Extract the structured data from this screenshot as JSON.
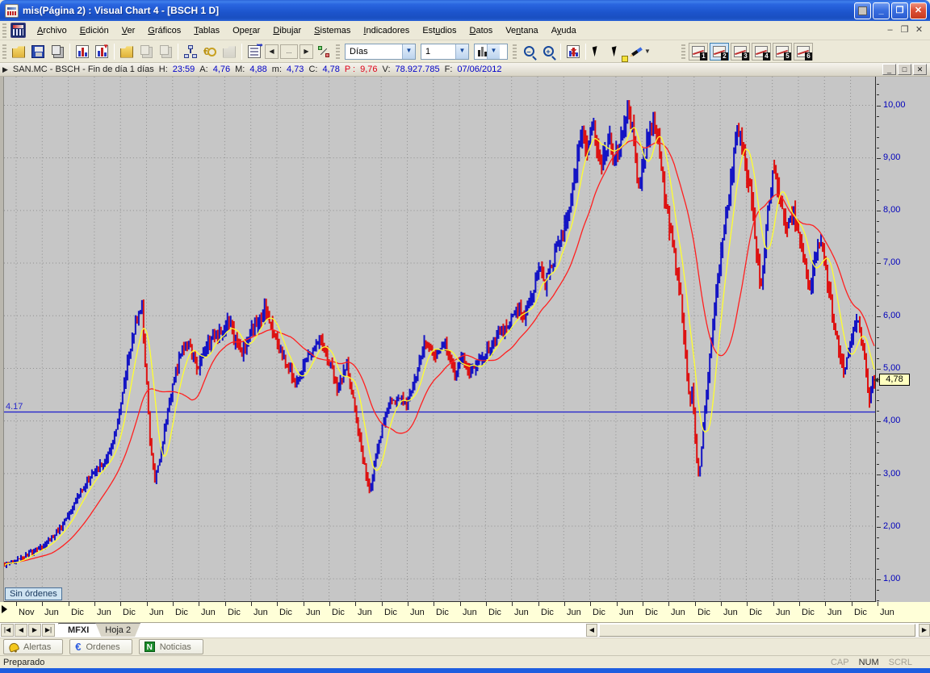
{
  "window": {
    "title": "mis(Página 2) : Visual Chart 4 - [BSCH 1 D]"
  },
  "menu": {
    "items": [
      {
        "label": "Archivo",
        "accel": 0
      },
      {
        "label": "Edición",
        "accel": 0
      },
      {
        "label": "Ver",
        "accel": 0
      },
      {
        "label": "Gráficos",
        "accel": 0
      },
      {
        "label": "Tablas",
        "accel": 0
      },
      {
        "label": "Operar",
        "accel": 3
      },
      {
        "label": "Dibujar",
        "accel": 0
      },
      {
        "label": "Sistemas",
        "accel": 0
      },
      {
        "label": "Indicadores",
        "accel": 0
      },
      {
        "label": "Estudios",
        "accel": 3
      },
      {
        "label": "Datos",
        "accel": 0
      },
      {
        "label": "Ventana",
        "accel": 2
      },
      {
        "label": "Ayuda",
        "accel": 1
      }
    ]
  },
  "toolbar": {
    "interval_combo": "Días",
    "periods_combo": "1",
    "page_buttons": [
      "1",
      "2",
      "3",
      "4",
      "5",
      "6"
    ],
    "active_page": "2"
  },
  "chart_header": {
    "segments": [
      {
        "t": "SAN.MC - BSCH - Fin de día 1 días",
        "c": "k"
      },
      {
        "t": "H:",
        "c": "k"
      },
      {
        "t": "23:59",
        "c": "b"
      },
      {
        "t": "A:",
        "c": "k"
      },
      {
        "t": "4,76",
        "c": "b"
      },
      {
        "t": "M:",
        "c": "k"
      },
      {
        "t": "4,88",
        "c": "b"
      },
      {
        "t": "m:",
        "c": "k"
      },
      {
        "t": "4,73",
        "c": "b"
      },
      {
        "t": "C:",
        "c": "k"
      },
      {
        "t": "4,78",
        "c": "b"
      },
      {
        "t": "P :",
        "c": "r"
      },
      {
        "t": "9,76",
        "c": "r"
      },
      {
        "t": "V:",
        "c": "k"
      },
      {
        "t": "78.927.785",
        "c": "b"
      },
      {
        "t": "F:",
        "c": "k"
      },
      {
        "t": "07/06/2012",
        "c": "b"
      }
    ]
  },
  "chart": {
    "y_axis_labels": [
      {
        "v": 10,
        "t": "10,00"
      },
      {
        "v": 9,
        "t": "9,00"
      },
      {
        "v": 8,
        "t": "8,00"
      },
      {
        "v": 7,
        "t": "7,00"
      },
      {
        "v": 6,
        "t": "6,00"
      },
      {
        "v": 5,
        "t": "5,00"
      },
      {
        "v": 4,
        "t": "4,00"
      },
      {
        "v": 3,
        "t": "3,00"
      },
      {
        "v": 2,
        "t": "2,00"
      },
      {
        "v": 1,
        "t": "1,00"
      }
    ],
    "x_axis_labels": [
      "Nov",
      "Jun",
      "Dic",
      "Jun",
      "Dic",
      "Jun",
      "Dic",
      "Jun",
      "Dic",
      "Jun",
      "Dic",
      "Jun",
      "Dic",
      "Jun",
      "Dic",
      "Jun",
      "Dic",
      "Jun",
      "Dic",
      "Jun",
      "Dic",
      "Jun",
      "Dic",
      "Jun",
      "Dic",
      "Jun",
      "Dic",
      "Jun",
      "Dic",
      "Jun",
      "Dic",
      "Jun",
      "Dic",
      "Jun"
    ],
    "hline": {
      "value": 4.17,
      "label": "4.17"
    },
    "last_price": {
      "value": 4.78,
      "label": "4,78"
    },
    "no_orders_label": "Sin órdenes",
    "colors": {
      "up": "#1414c4",
      "down": "#dd1212",
      "ma_fast": "#ffff2e",
      "ma_slow": "#ff2020",
      "hline": "#2626cc",
      "grid": "#8f8f8f",
      "bg": "#c6c6c6"
    }
  },
  "chart_data": {
    "type": "candlestick",
    "symbol": "SAN.MC",
    "period": "1 D",
    "summary": {
      "H": "23:59",
      "A": "4,76",
      "M": "4,88",
      "m": "4,73",
      "C": "4,78",
      "P": "9,76",
      "V": "78.927.785",
      "F": "07/06/2012"
    },
    "y_range": [
      0.55,
      10.55
    ],
    "anchors": [
      [
        6,
        1.28
      ],
      [
        18,
        1.32
      ],
      [
        32,
        1.42
      ],
      [
        46,
        1.55
      ],
      [
        60,
        1.68
      ],
      [
        72,
        1.88
      ],
      [
        84,
        2.12
      ],
      [
        96,
        2.5
      ],
      [
        108,
        2.8
      ],
      [
        120,
        3.05
      ],
      [
        132,
        3.25
      ],
      [
        142,
        3.6
      ],
      [
        152,
        4.35
      ],
      [
        162,
        5.3
      ],
      [
        170,
        5.85
      ],
      [
        178,
        6.12
      ],
      [
        183,
        4.9
      ],
      [
        188,
        3.6
      ],
      [
        194,
        2.85
      ],
      [
        200,
        3.3
      ],
      [
        208,
        4.0
      ],
      [
        216,
        4.7
      ],
      [
        226,
        5.25
      ],
      [
        236,
        5.45
      ],
      [
        246,
        5.0
      ],
      [
        256,
        5.35
      ],
      [
        266,
        5.6
      ],
      [
        276,
        5.72
      ],
      [
        286,
        5.88
      ],
      [
        294,
        5.5
      ],
      [
        302,
        5.32
      ],
      [
        312,
        5.62
      ],
      [
        322,
        5.9
      ],
      [
        330,
        6.1
      ],
      [
        338,
        5.82
      ],
      [
        348,
        5.35
      ],
      [
        358,
        5.05
      ],
      [
        368,
        4.72
      ],
      [
        378,
        5.0
      ],
      [
        388,
        5.3
      ],
      [
        398,
        5.55
      ],
      [
        406,
        5.3
      ],
      [
        414,
        4.95
      ],
      [
        420,
        4.6
      ],
      [
        426,
        4.85
      ],
      [
        432,
        5.08
      ],
      [
        438,
        4.6
      ],
      [
        444,
        4.1
      ],
      [
        450,
        3.5
      ],
      [
        456,
        2.95
      ],
      [
        461,
        2.58
      ],
      [
        466,
        3.15
      ],
      [
        472,
        3.6
      ],
      [
        478,
        4.0
      ],
      [
        484,
        4.35
      ],
      [
        492,
        4.42
      ],
      [
        500,
        4.5
      ],
      [
        506,
        4.28
      ],
      [
        512,
        4.55
      ],
      [
        518,
        4.9
      ],
      [
        524,
        5.3
      ],
      [
        530,
        5.58
      ],
      [
        536,
        5.4
      ],
      [
        542,
        5.2
      ],
      [
        548,
        5.42
      ],
      [
        554,
        5.52
      ],
      [
        560,
        5.2
      ],
      [
        566,
        4.95
      ],
      [
        572,
        5.1
      ],
      [
        578,
        5.18
      ],
      [
        584,
        4.95
      ],
      [
        590,
        5.05
      ],
      [
        598,
        5.18
      ],
      [
        606,
        5.35
      ],
      [
        614,
        5.55
      ],
      [
        622,
        5.7
      ],
      [
        630,
        5.82
      ],
      [
        638,
        6.0
      ],
      [
        646,
        6.18
      ],
      [
        652,
        6.02
      ],
      [
        658,
        6.3
      ],
      [
        666,
        6.62
      ],
      [
        672,
        6.88
      ],
      [
        678,
        6.6
      ],
      [
        684,
        6.9
      ],
      [
        690,
        7.2
      ],
      [
        696,
        7.5
      ],
      [
        702,
        7.7
      ],
      [
        708,
        8.1
      ],
      [
        714,
        8.6
      ],
      [
        720,
        9.15
      ],
      [
        725,
        9.4
      ],
      [
        729,
        9.1
      ],
      [
        733,
        9.35
      ],
      [
        737,
        9.55
      ],
      [
        742,
        9.2
      ],
      [
        747,
        8.9
      ],
      [
        752,
        9.15
      ],
      [
        757,
        9.35
      ],
      [
        762,
        9.15
      ],
      [
        767,
        9.0
      ],
      [
        772,
        9.45
      ],
      [
        777,
        9.75
      ],
      [
        781,
        10.05
      ],
      [
        785,
        9.65
      ],
      [
        789,
        9.0
      ],
      [
        794,
        8.45
      ],
      [
        799,
        8.85
      ],
      [
        804,
        9.25
      ],
      [
        809,
        9.6
      ],
      [
        814,
        9.68
      ],
      [
        818,
        9.25
      ],
      [
        822,
        8.7
      ],
      [
        826,
        8.25
      ],
      [
        831,
        7.8
      ],
      [
        836,
        7.35
      ],
      [
        841,
        6.9
      ],
      [
        846,
        6.3
      ],
      [
        850,
        5.6
      ],
      [
        854,
        4.85
      ],
      [
        857,
        4.3
      ],
      [
        860,
        4.65
      ],
      [
        863,
        3.95
      ],
      [
        866,
        3.3
      ],
      [
        869,
        3.0
      ],
      [
        872,
        3.55
      ],
      [
        876,
        4.2
      ],
      [
        880,
        4.9
      ],
      [
        884,
        5.5
      ],
      [
        888,
        6.1
      ],
      [
        893,
        6.8
      ],
      [
        898,
        7.4
      ],
      [
        903,
        8.0
      ],
      [
        908,
        8.6
      ],
      [
        913,
        9.2
      ],
      [
        917,
        9.6
      ],
      [
        921,
        9.3
      ],
      [
        925,
        8.95
      ],
      [
        929,
        8.6
      ],
      [
        933,
        8.25
      ],
      [
        937,
        7.7
      ],
      [
        941,
        7.1
      ],
      [
        945,
        6.4
      ],
      [
        949,
        7.0
      ],
      [
        953,
        7.8
      ],
      [
        957,
        8.4
      ],
      [
        961,
        8.8
      ],
      [
        965,
        8.5
      ],
      [
        969,
        8.2
      ],
      [
        973,
        7.85
      ],
      [
        977,
        7.55
      ],
      [
        981,
        7.8
      ],
      [
        985,
        8.05
      ],
      [
        989,
        7.8
      ],
      [
        993,
        7.5
      ],
      [
        997,
        7.2
      ],
      [
        1001,
        6.85
      ],
      [
        1005,
        6.45
      ],
      [
        1009,
        6.7
      ],
      [
        1013,
        7.15
      ],
      [
        1017,
        7.45
      ],
      [
        1021,
        7.25
      ],
      [
        1025,
        6.95
      ],
      [
        1029,
        6.6
      ],
      [
        1033,
        6.2
      ],
      [
        1037,
        5.8
      ],
      [
        1041,
        5.45
      ],
      [
        1045,
        5.15
      ],
      [
        1049,
        4.9
      ],
      [
        1053,
        5.2
      ],
      [
        1057,
        5.5
      ],
      [
        1061,
        5.8
      ],
      [
        1065,
        6.0
      ],
      [
        1069,
        5.65
      ],
      [
        1073,
        5.35
      ],
      [
        1077,
        4.85
      ],
      [
        1080,
        4.4
      ],
      [
        1084,
        4.78
      ]
    ]
  },
  "tabs": {
    "sheets": [
      "MFXI",
      "Hoja 2"
    ],
    "active": "MFXI"
  },
  "panels": {
    "buttons": [
      {
        "label": "Alertas",
        "icon": "bell-icon"
      },
      {
        "label": "Ordenes",
        "icon": "euro-icon"
      },
      {
        "label": "Noticias",
        "icon": "news-icon"
      }
    ]
  },
  "statusbar": {
    "ready": "Preparado",
    "cap": "CAP",
    "num": "NUM",
    "scrl": "SCRL"
  }
}
